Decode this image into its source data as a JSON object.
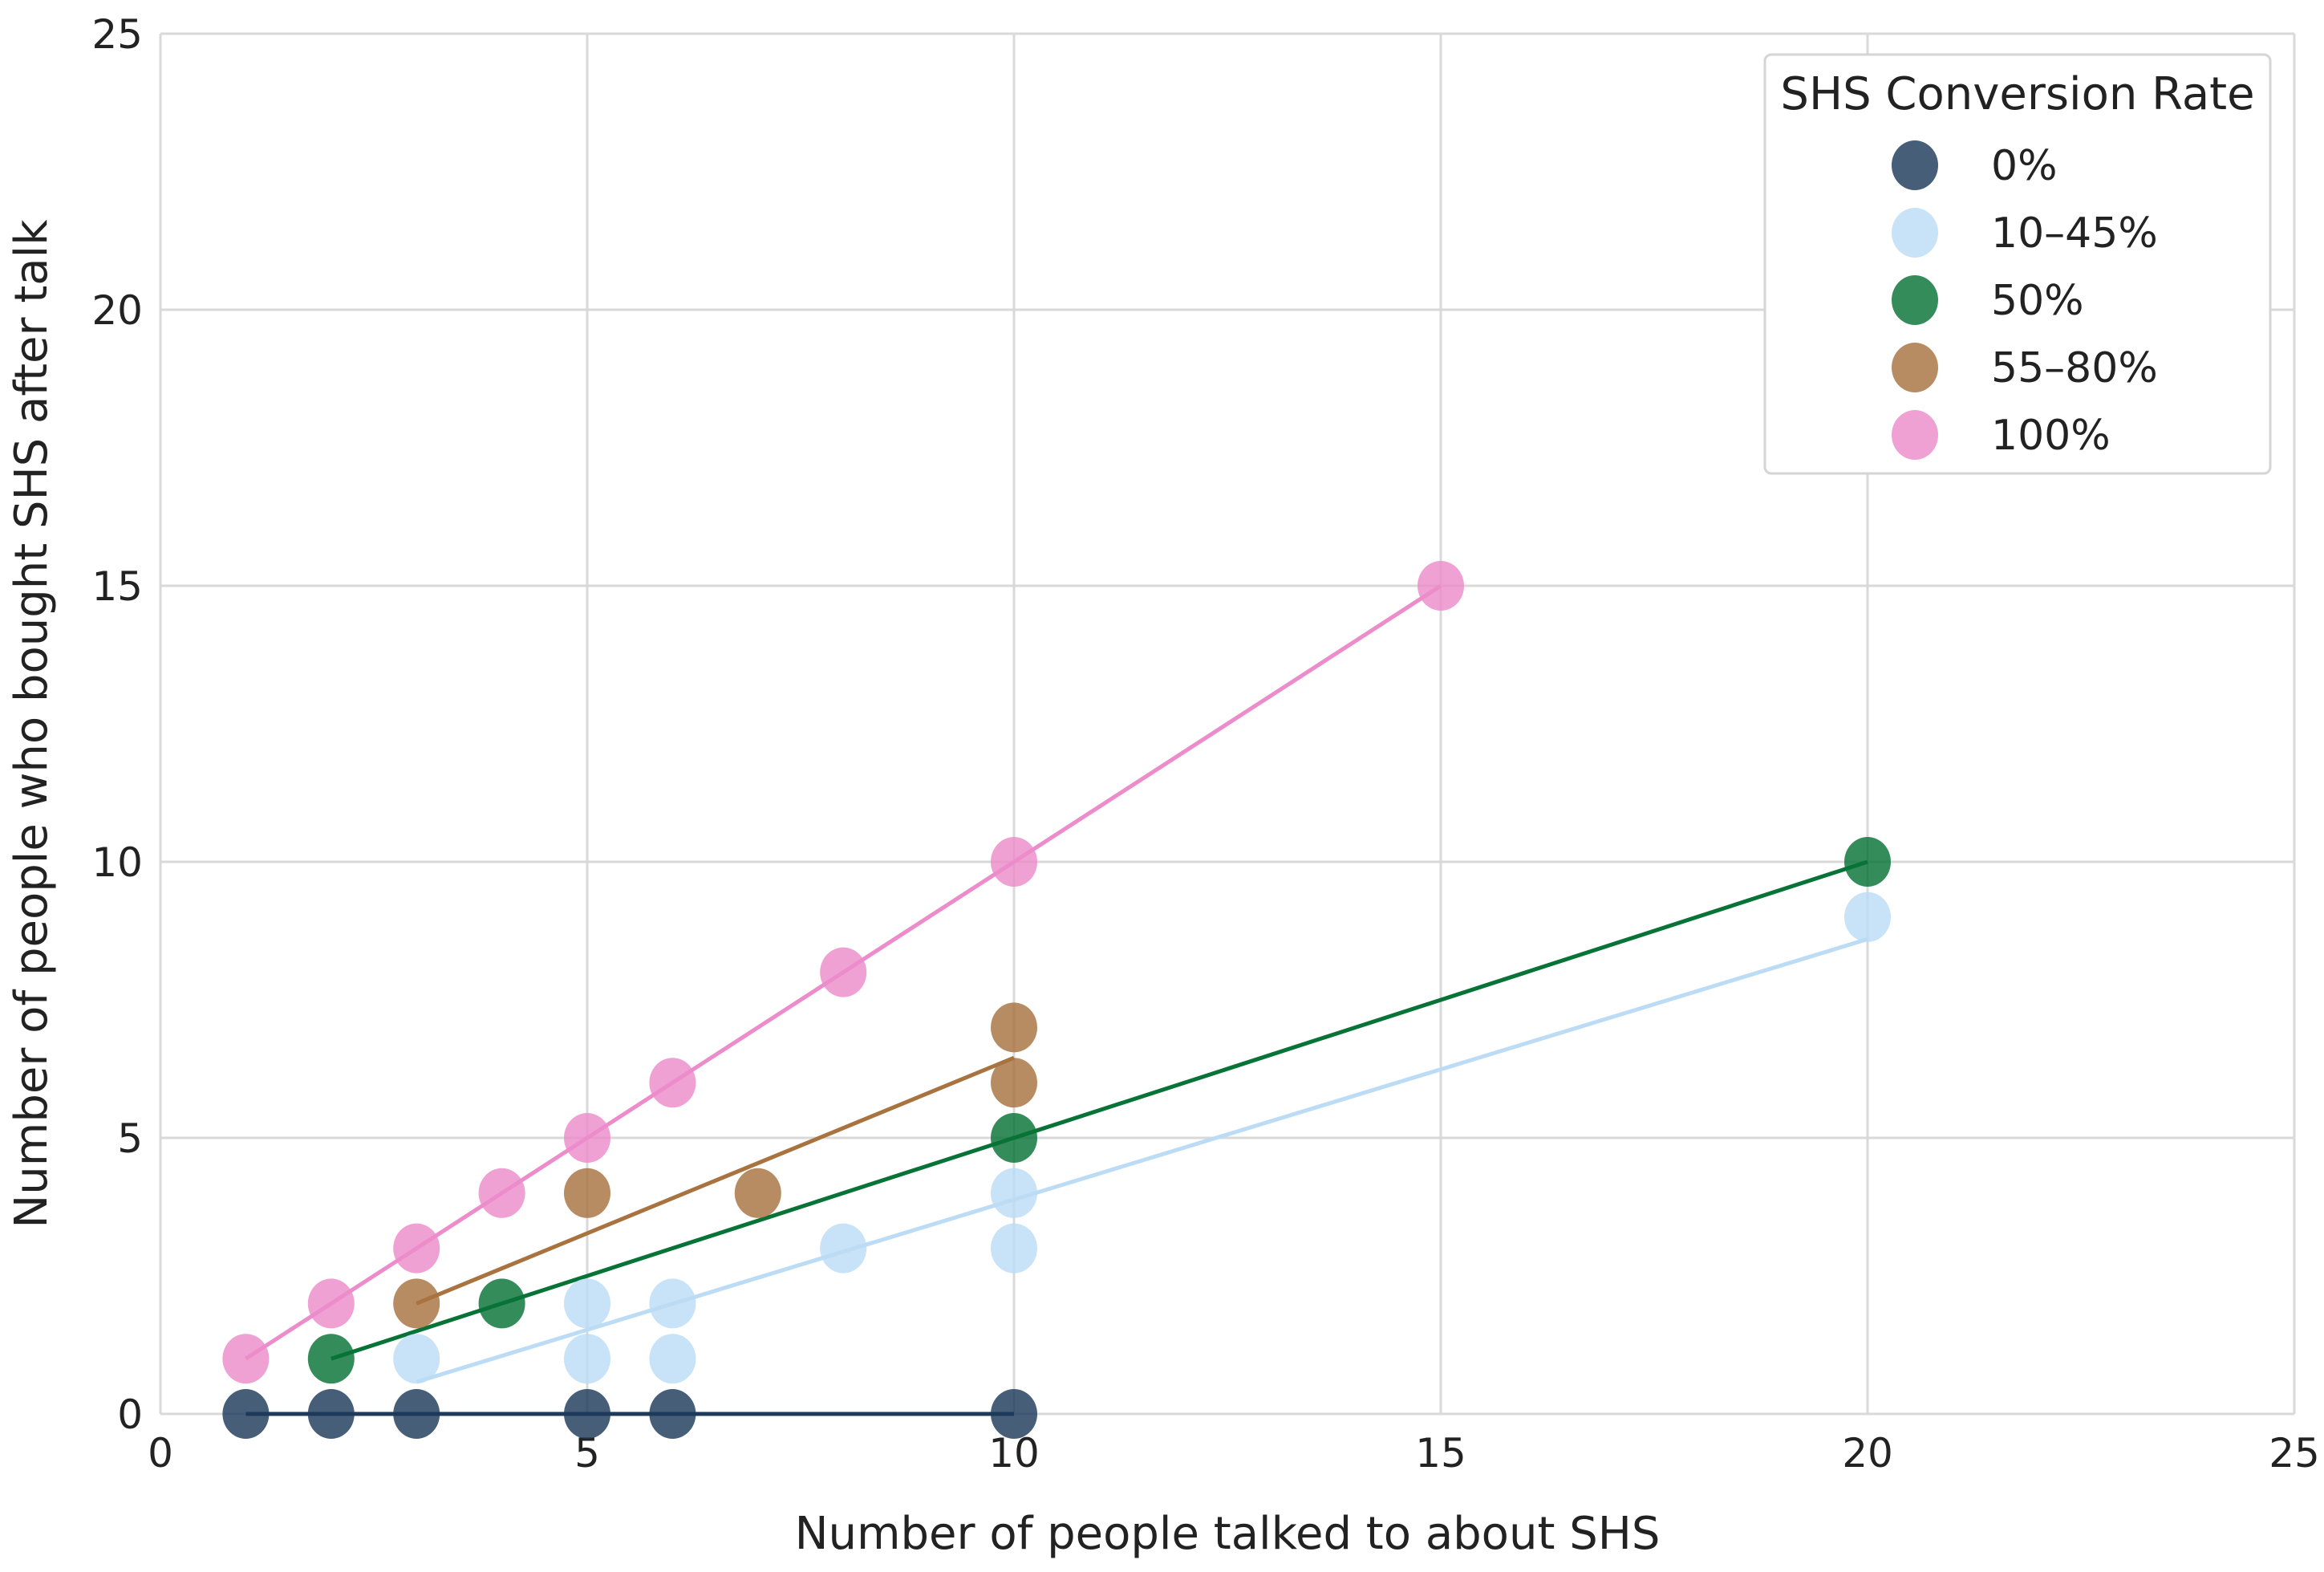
{
  "chart_data": {
    "type": "scatter",
    "title": "",
    "xlabel": "Number of people talked to about SHS",
    "ylabel": "Number of people who bought SHS after talk",
    "xlim": [
      0,
      25
    ],
    "ylim": [
      0,
      25
    ],
    "xticks": [
      0,
      5,
      10,
      15,
      20,
      25
    ],
    "yticks": [
      0,
      5,
      10,
      15,
      20,
      25
    ],
    "xtick_labels": [
      "0",
      "5",
      "10",
      "15",
      "20",
      "25"
    ],
    "ytick_labels": [
      "0",
      "5",
      "10",
      "15",
      "20",
      "25"
    ],
    "grid": true,
    "legend": {
      "title": "SHS Conversion Rate",
      "position": "top-right"
    },
    "series": [
      {
        "name": "0%",
        "color": "#1f3b5c",
        "points": [
          [
            1,
            0
          ],
          [
            2,
            0
          ],
          [
            3,
            0
          ],
          [
            5,
            0
          ],
          [
            6,
            0
          ],
          [
            10,
            0
          ]
        ],
        "trend": [
          [
            1,
            0
          ],
          [
            10,
            0
          ]
        ]
      },
      {
        "name": "10–45%",
        "color": "#bcdcf5",
        "points": [
          [
            3,
            1
          ],
          [
            5,
            2
          ],
          [
            5,
            1
          ],
          [
            6,
            2
          ],
          [
            6,
            1
          ],
          [
            8,
            3
          ],
          [
            10,
            4
          ],
          [
            10,
            3
          ],
          [
            20,
            9
          ]
        ],
        "trend": [
          [
            3,
            0.58
          ],
          [
            20,
            8.6
          ]
        ]
      },
      {
        "name": "50%",
        "color": "#087337",
        "points": [
          [
            2,
            1
          ],
          [
            4,
            2
          ],
          [
            10,
            5
          ],
          [
            20,
            10
          ]
        ],
        "trend": [
          [
            2,
            1
          ],
          [
            20,
            10
          ]
        ]
      },
      {
        "name": "55–80%",
        "color": "#a8733f",
        "points": [
          [
            3,
            2
          ],
          [
            5,
            4
          ],
          [
            7,
            4
          ],
          [
            10,
            7
          ],
          [
            10,
            6
          ]
        ],
        "trend": [
          [
            3,
            2
          ],
          [
            10,
            6.45
          ]
        ]
      },
      {
        "name": "100%",
        "color": "#ec8ccb",
        "points": [
          [
            1,
            1
          ],
          [
            2,
            2
          ],
          [
            3,
            3
          ],
          [
            4,
            4
          ],
          [
            5,
            5
          ],
          [
            6,
            6
          ],
          [
            8,
            8
          ],
          [
            10,
            10
          ],
          [
            15,
            15
          ]
        ],
        "trend": [
          [
            1,
            1
          ],
          [
            15,
            15
          ]
        ]
      }
    ]
  }
}
